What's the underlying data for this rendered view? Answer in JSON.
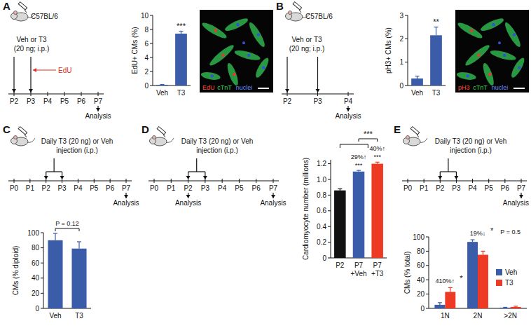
{
  "chart_data": [
    {
      "panel": "A",
      "type": "bar",
      "schematic": {
        "strain": "C57BL/6",
        "treatment": [
          "Veh or T3",
          "(20 ng; i.p.)"
        ],
        "timeline": [
          "P2",
          "P3",
          "P4",
          "P5",
          "P6",
          "P7"
        ],
        "injections": [
          "P2",
          "P3"
        ],
        "pulse": "EdU",
        "pulse_at": "P3",
        "analysis": "Analysis",
        "analysis_at": [
          "P7"
        ]
      },
      "y_label": "EdU+ CMs (%)",
      "categories": [
        "Veh",
        "T3"
      ],
      "values": [
        0.1,
        7.4
      ],
      "errors": [
        0.05,
        0.35
      ],
      "color": "#3b5ca8",
      "ylim": [
        0,
        10
      ],
      "yticks": [
        0,
        2,
        4,
        6,
        8,
        10
      ],
      "annotations": [
        null,
        "***"
      ],
      "image_legend": [
        "EdU",
        "cTnT",
        "nuclei"
      ]
    },
    {
      "panel": "B",
      "type": "bar",
      "schematic": {
        "strain": "C57BL/6",
        "treatment": [
          "Veh or T3",
          "(20 ng; i.p.)"
        ],
        "timeline": [
          "P2",
          "P3",
          "P4"
        ],
        "injections": [
          "P2",
          "P3"
        ],
        "analysis": "Analysis",
        "analysis_at": [
          "P4"
        ]
      },
      "y_label": "pH3+ CMs (%)",
      "categories": [
        "Veh",
        "T3"
      ],
      "values": [
        0.3,
        2.15
      ],
      "errors": [
        0.1,
        0.35
      ],
      "color": "#3b5ca8",
      "ylim": [
        0,
        3
      ],
      "yticks": [
        0,
        1,
        2,
        3
      ],
      "annotations": [
        null,
        "**"
      ],
      "image_legend": [
        "pH3",
        "cTnT",
        "nuclei"
      ]
    },
    {
      "panel": "C",
      "type": "bar",
      "schematic": {
        "treatment": [
          "Daily T3 (20 ng) or Veh",
          "injection (i.p.)"
        ],
        "timeline": [
          "P0",
          "P1",
          "P2",
          "P3",
          "P4",
          "P5",
          "P6",
          "P7"
        ],
        "repeat": [
          "P2",
          "P3"
        ],
        "analysis": "Analysis",
        "analysis_at": [
          "P7"
        ]
      },
      "y_label": "CMs (% diploid)",
      "categories": [
        "Veh",
        "T3"
      ],
      "values": [
        90,
        79
      ],
      "errors": [
        9,
        9
      ],
      "color": "#3b5ca8",
      "ylim": [
        0,
        100
      ],
      "yticks": [
        0,
        20,
        40,
        60,
        80,
        100
      ],
      "comparison": "P = 0.12"
    },
    {
      "panel": "D",
      "type": "bar",
      "schematic": {
        "treatment": [
          "Daily T3 (20 ng) or Veh",
          "injection (i.p.)"
        ],
        "timeline": [
          "P0",
          "P1",
          "P2",
          "P3",
          "P4",
          "P5",
          "P6",
          "P7"
        ],
        "repeat": [
          "P2",
          "P3"
        ],
        "analysis": "Analysis",
        "analysis_at": [
          "P2",
          "P7"
        ]
      },
      "y_label": "Cardiomyocyte number (millions)",
      "categories": [
        "P2",
        "P7\n+Veh",
        "P7\n+T3"
      ],
      "values": [
        0.86,
        1.1,
        1.2
      ],
      "errors": [
        0.02,
        0.015,
        0.02
      ],
      "colors": [
        "#111111",
        "#3b5ca8",
        "#ee3a24"
      ],
      "ylim": [
        0,
        1.25
      ],
      "yticks": [
        0,
        0.2,
        0.4,
        0.6,
        0.8,
        {
          "value": 1,
          "label": "1.0"
        },
        1.2
      ],
      "annotations": [
        null,
        [
          "29%↑",
          "***"
        ],
        [
          "40%↑",
          "***"
        ]
      ],
      "comparison": "***"
    },
    {
      "panel": "E",
      "type": "bar",
      "schematic": {
        "treatment": [
          "Daily T3 (20 ng) or Veh",
          "injection (i.p.)"
        ],
        "timeline": [
          "P0",
          "P1",
          "P2",
          "P3",
          "P4",
          "P5",
          "P6",
          "P7"
        ],
        "repeat": [
          "P2",
          "P3"
        ],
        "analysis": "Analysis",
        "analysis_at": [
          "P7"
        ]
      },
      "y_label": "CMs (% total)",
      "categories": [
        "1N",
        "2N",
        ">2N"
      ],
      "series": [
        {
          "name": "Veh",
          "color": "#3b5ca8",
          "values": [
            5,
            93,
            1
          ],
          "errors": [
            3,
            3,
            0.5
          ]
        },
        {
          "name": "T3",
          "color": "#ee3a24",
          "values": [
            23,
            75,
            2
          ],
          "errors": [
            6,
            5,
            1
          ]
        }
      ],
      "ylim": [
        0,
        100
      ],
      "yticks": [
        0,
        20,
        40,
        60,
        80,
        100
      ],
      "legend": "right",
      "annotations": [
        [
          "410%↑",
          "*"
        ],
        [
          "19%↓",
          "*"
        ],
        [
          "P = 0.5"
        ]
      ]
    }
  ]
}
